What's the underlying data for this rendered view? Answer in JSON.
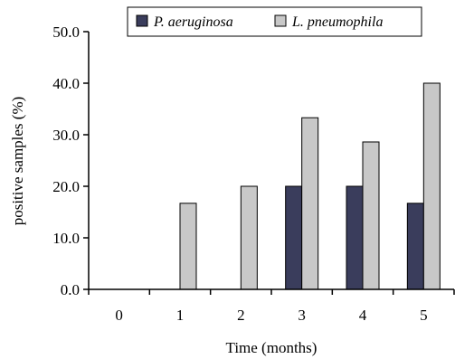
{
  "chart_data": {
    "type": "bar",
    "categories": [
      "0",
      "1",
      "2",
      "3",
      "4",
      "5"
    ],
    "series": [
      {
        "name": "P. aeruginosa",
        "values": [
          0,
          0,
          0,
          20.0,
          20.0,
          16.7
        ],
        "color": "#3a3d5c"
      },
      {
        "name": "L. pneumophila",
        "values": [
          0,
          16.7,
          20.0,
          33.3,
          28.6,
          40.0
        ],
        "color": "#c8c8c8"
      }
    ],
    "xlabel": "Time (months)",
    "ylabel": "positive samples (%)",
    "ylim": [
      0,
      50
    ],
    "yticks": [
      "0.0",
      "10.0",
      "20.0",
      "30.0",
      "40.0",
      "50.0"
    ],
    "grid": false,
    "legend_position": "top"
  }
}
